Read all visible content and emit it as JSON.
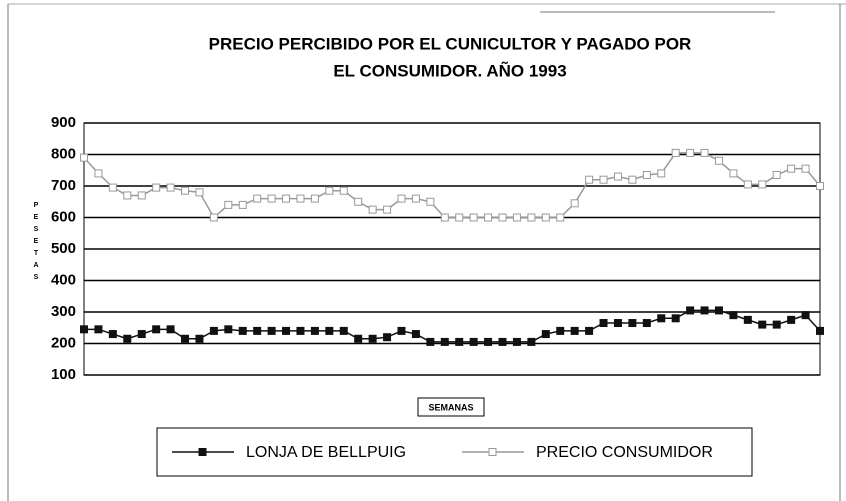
{
  "chart_data": {
    "type": "line",
    "title": [
      "PRECIO PERCIBIDO POR EL CUNICULTOR Y PAGADO POR",
      "EL CONSUMIDOR. AÑO 1993"
    ],
    "y_label": "PESETAS",
    "x_label": "SEMANAS",
    "categories": [
      null,
      null,
      null,
      null,
      null,
      null,
      null,
      null,
      null,
      null,
      null,
      null,
      null,
      null,
      null,
      null,
      null,
      null,
      null,
      null,
      null,
      null,
      null,
      null,
      null,
      null,
      null,
      null,
      null,
      null,
      null,
      null,
      null,
      null,
      null,
      null,
      null,
      null,
      null,
      null,
      null,
      null,
      null,
      null,
      null,
      null,
      null,
      null,
      null,
      null,
      null,
      null
    ],
    "series": [
      {
        "name": "LONJA DE BELLPUIG",
        "color": "#111111",
        "marker_fill": "#111111",
        "values": [
          245,
          245,
          230,
          215,
          230,
          245,
          245,
          215,
          215,
          240,
          245,
          240,
          240,
          240,
          240,
          240,
          240,
          240,
          240,
          215,
          215,
          220,
          240,
          230,
          205,
          205,
          205,
          205,
          205,
          205,
          205,
          205,
          230,
          240,
          240,
          240,
          265,
          265,
          265,
          265,
          280,
          280,
          305,
          305,
          305,
          290,
          275,
          260,
          260,
          275,
          290,
          240
        ]
      },
      {
        "name": "PRECIO CONSUMIDOR",
        "color": "#999999",
        "marker_fill": "#ffffff",
        "values": [
          790,
          740,
          695,
          670,
          670,
          695,
          695,
          685,
          680,
          600,
          640,
          640,
          660,
          660,
          660,
          660,
          660,
          685,
          685,
          650,
          625,
          625,
          660,
          660,
          650,
          600,
          600,
          600,
          600,
          600,
          600,
          600,
          600,
          600,
          645,
          720,
          720,
          730,
          720,
          735,
          740,
          805,
          805,
          805,
          780,
          740,
          705,
          705,
          735,
          755,
          755,
          700
        ]
      }
    ],
    "ylim": [
      100,
      900
    ],
    "yticks": [
      100,
      200,
      300,
      400,
      500,
      600,
      700,
      800,
      900
    ],
    "grid": true
  }
}
